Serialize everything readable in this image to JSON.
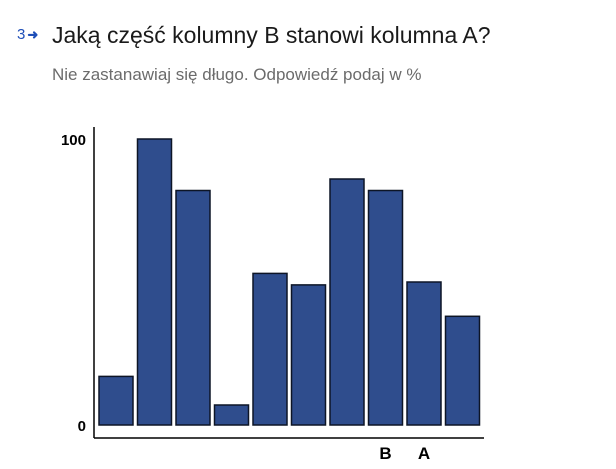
{
  "question": {
    "number": "3",
    "title": "Jaką część kolumny B stanowi kolumna A?",
    "subtitle": "Nie zastanawiaj się długo. Odpowiedź podaj w %"
  },
  "colors": {
    "bar_fill": "#2f4d8d",
    "bar_stroke": "#0d1526",
    "accent": "#1f4fb8"
  },
  "chart_data": {
    "type": "bar",
    "categories": [
      "",
      "",
      "",
      "",
      "",
      "",
      "",
      "B",
      "A",
      ""
    ],
    "values": [
      17,
      100,
      82,
      7,
      53,
      49,
      86,
      82,
      50,
      38
    ],
    "yticks": [
      0,
      100
    ],
    "ylim": [
      0,
      100
    ],
    "title": "",
    "xlabel": "",
    "ylabel": ""
  }
}
